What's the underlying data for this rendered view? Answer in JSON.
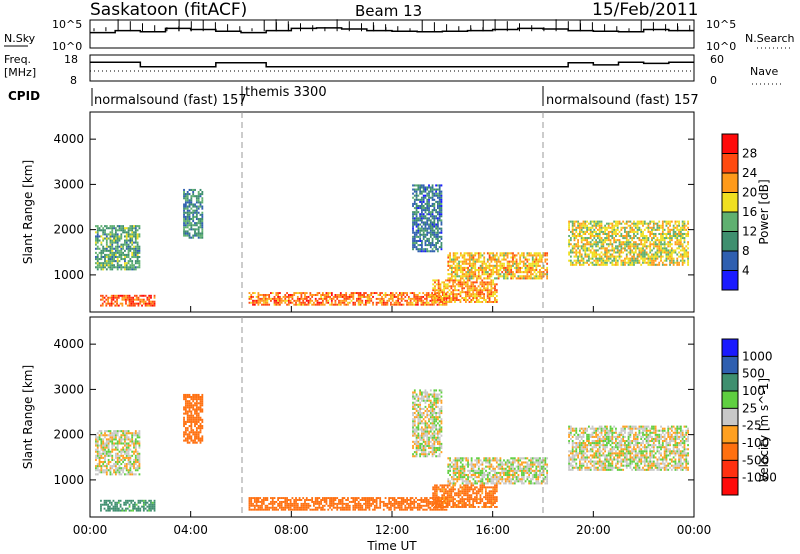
{
  "header": {
    "station": "Saskatoon (fitACF)",
    "beam": "Beam 13",
    "date": "15/Feb/2011"
  },
  "noise_panel": {
    "left_label": "N.Sky",
    "right_label": "N.Search",
    "left_ticks": [
      "10^5",
      "10^0"
    ],
    "right_ticks": [
      "10^5",
      "10^0"
    ],
    "trace_level": [
      0.55,
      0.62,
      0.58,
      0.7,
      0.66,
      0.6,
      0.55,
      0.62,
      0.7,
      0.72,
      0.68,
      0.62,
      0.6,
      0.58,
      0.6,
      0.62,
      0.66,
      0.7,
      0.68,
      0.62,
      0.6,
      0.58,
      0.66,
      0.62
    ]
  },
  "freq_panel": {
    "left_label_line1": "Freq.",
    "left_label_line2": "[MHz]",
    "right_label": "Nave",
    "left_ticks": [
      "18",
      "8"
    ],
    "right_ticks": [
      "60",
      "0"
    ],
    "freq_steps": [
      0.72,
      0.72,
      0.55,
      0.55,
      0.55,
      0.7,
      0.7,
      0.55,
      0.55,
      0.55,
      0.55,
      0.55,
      0.55,
      0.55,
      0.55,
      0.55,
      0.55,
      0.55,
      0.55,
      0.7,
      0.62,
      0.72,
      0.68,
      0.72
    ]
  },
  "cpid": {
    "label": "CPID",
    "segments": [
      {
        "text": "normalsound (fast) 157",
        "start_hour": 0
      },
      {
        "text": "themis 3300",
        "start_hour": 6
      },
      {
        "text": "normalsound (fast) 157",
        "start_hour": 18
      }
    ]
  },
  "mode_boundaries_hours": [
    6,
    18
  ],
  "chart_data": [
    {
      "type": "heatmap",
      "title": "Power",
      "xlabel": "Time UT",
      "ylabel": "Slant Range [km]",
      "xlim_hours": [
        0,
        24
      ],
      "ylim": [
        180,
        4600
      ],
      "yticks": [
        1000,
        2000,
        3000,
        4000
      ],
      "colorbar_label": "Power [dB]",
      "colorbar_ticks": [
        "4",
        "8",
        "12",
        "16",
        "20",
        "24",
        "28"
      ],
      "colorbar_colors": [
        "#1a1aff",
        "#2f5fb0",
        "#3f8f6f",
        "#5fb070",
        "#f0e020",
        "#ff9a1a",
        "#ff4a10",
        "#ff0a0a"
      ],
      "echo_regions": [
        {
          "t0": 0.4,
          "t1": 2.6,
          "r0": 300,
          "r1": 560,
          "value": 26
        },
        {
          "t0": 6.3,
          "t1": 14.2,
          "r0": 320,
          "r1": 620,
          "value": 24
        },
        {
          "t0": 13.6,
          "t1": 16.2,
          "r0": 380,
          "r1": 900,
          "value": 22
        },
        {
          "t0": 14.2,
          "t1": 18.2,
          "r0": 900,
          "r1": 1500,
          "value": 20
        },
        {
          "t0": 19.0,
          "t1": 23.8,
          "r0": 1200,
          "r1": 2200,
          "value": 18
        },
        {
          "t0": 0.2,
          "t1": 2.0,
          "r0": 1100,
          "r1": 2100,
          "value": 12
        },
        {
          "t0": 3.7,
          "t1": 4.5,
          "r0": 1800,
          "r1": 2900,
          "value": 10
        },
        {
          "t0": 12.8,
          "t1": 14.0,
          "r0": 1500,
          "r1": 3000,
          "value": 8
        }
      ]
    },
    {
      "type": "heatmap",
      "title": "Velocity",
      "xlabel": "Time UT",
      "ylabel": "Slant Range [km]",
      "xlim_hours": [
        0,
        24
      ],
      "ylim": [
        180,
        4600
      ],
      "yticks": [
        1000,
        2000,
        3000,
        4000
      ],
      "xtick_labels": [
        "00:00",
        "04:00",
        "08:00",
        "12:00",
        "16:00",
        "20:00",
        "00:00"
      ],
      "colorbar_label": "Velocity [m s^-1]",
      "colorbar_ticks": [
        "1000",
        "500",
        "100",
        "25",
        "-25",
        "-100",
        "-500",
        "-1000"
      ],
      "colorbar_colors": [
        "#1a1aff",
        "#2f5fb0",
        "#3f8f6f",
        "#5fcf40",
        "#c8c8c8",
        "#ffa020",
        "#ff7010",
        "#ff3010",
        "#ff0a0a"
      ],
      "echo_regions": [
        {
          "t0": 0.4,
          "t1": 2.6,
          "r0": 300,
          "r1": 560,
          "value": 150
        },
        {
          "t0": 6.3,
          "t1": 14.2,
          "r0": 320,
          "r1": 620,
          "value": -200
        },
        {
          "t0": 13.6,
          "t1": 16.2,
          "r0": 380,
          "r1": 900,
          "value": -150
        },
        {
          "t0": 14.2,
          "t1": 18.2,
          "r0": 900,
          "r1": 1500,
          "value": 0
        },
        {
          "t0": 19.0,
          "t1": 23.8,
          "r0": 1200,
          "r1": 2200,
          "value": 0
        },
        {
          "t0": 0.2,
          "t1": 2.0,
          "r0": 1100,
          "r1": 2100,
          "value": 0
        },
        {
          "t0": 3.7,
          "t1": 4.5,
          "r0": 1800,
          "r1": 2900,
          "value": -400
        },
        {
          "t0": 12.8,
          "t1": 14.0,
          "r0": 1500,
          "r1": 3000,
          "value": 0
        }
      ]
    }
  ]
}
